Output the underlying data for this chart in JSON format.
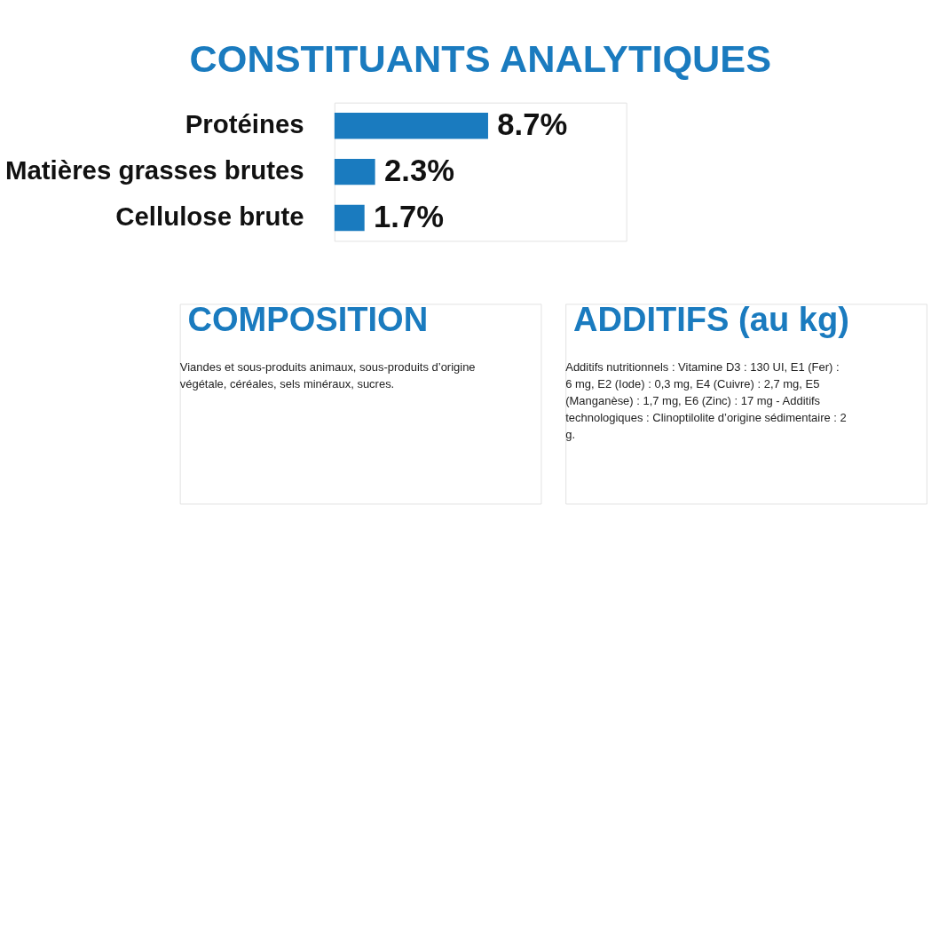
{
  "chart_data": {
    "type": "bar",
    "orientation": "horizontal",
    "title": "CONSTITUANTS ANALYTIQUES",
    "categories": [
      "Protéines",
      "Matières grasses brutes",
      "Cellulose brute"
    ],
    "values": [
      8.7,
      2.3,
      1.7
    ],
    "color": "#1a7bbf",
    "value_labels": [
      "8.7%",
      "2.3%",
      "1.7%"
    ],
    "annotations": [
      "COMPOSITION",
      "Viandes et sous-produits animaux, sous-produits d’origine végétale, céréales, sels minéraux, sucres.",
      "ADDITIFS (au kg)",
      "Additifs nutritionnels : Vitamine D3 : 130 UI, E1 (Fer) : 6 mg, E2 (Iode) : 0,3 mg, E4 (Cuivre) : 2,7 mg, E5 (Manganèse) : 1,7 mg, E6 (Zinc) : 17 mg - Additifs technologiques : Clinoptilolite d’origine sédimentaire : 2 g."
    ]
  }
}
